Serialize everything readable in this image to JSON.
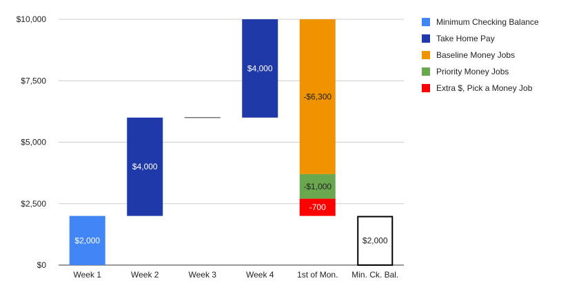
{
  "chart_data": {
    "type": "waterfall",
    "title": "",
    "xlabel": "",
    "ylabel": "",
    "ylim": [
      0,
      10000
    ],
    "yticks": [
      "$0",
      "$2,500",
      "$5,000",
      "$7,500",
      "$10,000"
    ],
    "ytick_values": [
      0,
      2500,
      5000,
      7500,
      10000
    ],
    "grid": true,
    "legend_position": "right",
    "categories": [
      "Week 1",
      "Week 2",
      "Week 3",
      "Week 4",
      "1st of Mon.",
      "Min. Ck. Bal."
    ],
    "series": [
      {
        "name": "Minimum Checking Balance",
        "color": "#4285f4"
      },
      {
        "name": "Take Home Pay",
        "color": "#1f3aa8"
      },
      {
        "name": "Baseline Money Jobs",
        "color": "#f09300"
      },
      {
        "name": "Priority Money Jobs",
        "color": "#6aa84f"
      },
      {
        "name": "Extra $, Pick a Money Job",
        "color": "#ff0000"
      }
    ],
    "segments": [
      {
        "category": 0,
        "series": 0,
        "start": 0,
        "end": 2000,
        "label": "$2,000",
        "label_color": "#ffffff"
      },
      {
        "category": 1,
        "series": 1,
        "start": 2000,
        "end": 6000,
        "label": "$4,000",
        "label_color": "#ffffff"
      },
      {
        "category": 2,
        "series": 1,
        "start": 6000,
        "end": 6000,
        "label": "",
        "label_color": "#757575"
      },
      {
        "category": 3,
        "series": 1,
        "start": 6000,
        "end": 10000,
        "label": "$4,000",
        "label_color": "#ffffff"
      },
      {
        "category": 4,
        "series": 2,
        "start": 10000,
        "end": 3700,
        "label": "-$6,300",
        "label_color": "#222222"
      },
      {
        "category": 4,
        "series": 3,
        "start": 3700,
        "end": 2700,
        "label": "-$1,000",
        "label_color": "#222222"
      },
      {
        "category": 4,
        "series": 4,
        "start": 2700,
        "end": 2000,
        "label": "-700",
        "label_color": "#ffffff"
      },
      {
        "category": 5,
        "series": -1,
        "start": 0,
        "end": 2000,
        "label": "$2,000",
        "label_color": "#222222",
        "total": true
      }
    ]
  }
}
